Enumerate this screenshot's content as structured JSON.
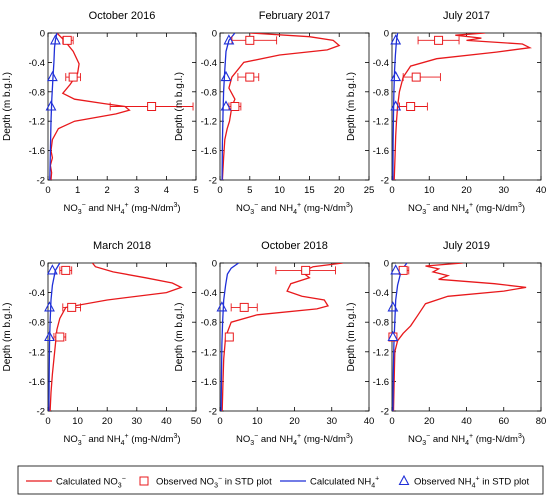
{
  "y_axis": {
    "label": "Depth (m b.g.l.)",
    "ticks": [
      0,
      -0.4,
      -0.8,
      -1.2,
      -1.6,
      -2
    ],
    "tick_labels": [
      "0",
      "-0.4",
      "-0.8",
      "-1.2",
      "-1.6",
      "-2"
    ],
    "range": [
      -2,
      0
    ]
  },
  "x_axis_label_parts": [
    "NO",
    "3",
    "−",
    " and NH",
    "4",
    "+",
    " (mg-N/dm",
    "3",
    ")"
  ],
  "colors": {
    "calculated_no3": "#e8191c",
    "observed_no3": "#e8191c",
    "calculated_nh4": "#1f2fd8",
    "observed_nh4": "#1f2fd8"
  },
  "legend": {
    "calc_no3": "Calculated NO3-",
    "obs_no3": "Observed NO3- in STD plot",
    "calc_nh4": "Calculated NH4+",
    "obs_nh4": "Observed NH4+ in STD plot"
  },
  "chart_data": [
    {
      "type": "line",
      "title": "October 2016",
      "xlim": [
        0,
        5
      ],
      "xticks": [
        0,
        1,
        2,
        3,
        4,
        5
      ],
      "series": [
        {
          "name": "Calculated NO3-",
          "x": [
            0.3,
            0.55,
            0.85,
            1.05,
            1.0,
            0.75,
            0.5,
            0.9,
            1.9,
            2.6,
            2.75,
            2.3,
            0.9,
            0.35,
            0.15,
            0.1,
            0.15,
            0.08,
            0.12,
            0.1
          ],
          "y": [
            0,
            -0.1,
            -0.25,
            -0.42,
            -0.55,
            -0.7,
            -0.82,
            -0.9,
            -0.96,
            -1.0,
            -1.05,
            -1.1,
            -1.2,
            -1.3,
            -1.45,
            -1.6,
            -1.7,
            -1.8,
            -1.9,
            -2
          ]
        },
        {
          "name": "Calculated NH4+",
          "x": [
            0.3,
            0.25,
            0.22,
            0.2,
            0.17,
            0.13,
            0.1,
            0.08,
            0.06
          ],
          "y": [
            0,
            -0.1,
            -0.2,
            -0.4,
            -0.6,
            -0.9,
            -1.2,
            -1.6,
            -2
          ]
        }
      ],
      "observed_no3": [
        {
          "x": 0.65,
          "y": -0.1,
          "xmin": 0.5,
          "xmax": 0.85
        },
        {
          "x": 0.85,
          "y": -0.6,
          "xmin": 0.6,
          "xmax": 1.1
        },
        {
          "x": 3.5,
          "y": -1.0,
          "xmin": 2.1,
          "xmax": 4.9
        }
      ],
      "observed_nh4": [
        {
          "x": 0.25,
          "y": -0.1
        },
        {
          "x": 0.15,
          "y": -0.6
        },
        {
          "x": 0.1,
          "y": -1.0
        }
      ]
    },
    {
      "type": "line",
      "title": "February 2017",
      "xlim": [
        0,
        25
      ],
      "xticks": [
        0,
        5,
        10,
        15,
        20,
        25
      ],
      "series": [
        {
          "name": "Calculated NO3-",
          "x": [
            5,
            15,
            19,
            20,
            18,
            10,
            4,
            2,
            1.5,
            2.5,
            2.0,
            1.6,
            1.2,
            0.8,
            0.6,
            0.4
          ],
          "y": [
            0,
            -0.05,
            -0.1,
            -0.17,
            -0.23,
            -0.3,
            -0.4,
            -0.6,
            -0.75,
            -0.9,
            -1.0,
            -1.2,
            -1.3,
            -1.45,
            -1.7,
            -2
          ]
        },
        {
          "name": "Calculated NH4+",
          "x": [
            2.5,
            1.5,
            1.0,
            0.8,
            0.6,
            0.5,
            0.4,
            0.35
          ],
          "y": [
            0,
            -0.1,
            -0.25,
            -0.5,
            -0.8,
            -1.1,
            -1.5,
            -2
          ]
        }
      ],
      "observed_no3": [
        {
          "x": 5,
          "y": -0.1,
          "xmin": 2,
          "xmax": 9.5
        },
        {
          "x": 5,
          "y": -0.6,
          "xmin": 3,
          "xmax": 6.5
        },
        {
          "x": 2.5,
          "y": -1.0,
          "xmin": 1.5,
          "xmax": 3.5
        }
      ],
      "observed_nh4": [
        {
          "x": 1.5,
          "y": -0.1
        },
        {
          "x": 1.0,
          "y": -0.6
        },
        {
          "x": 1.0,
          "y": -1.0
        }
      ]
    },
    {
      "type": "line",
      "title": "July 2017",
      "xlim": [
        0,
        40
      ],
      "xticks": [
        0,
        10,
        20,
        30,
        40
      ],
      "series": [
        {
          "name": "Calculated NO3-",
          "x": [
            25,
            17,
            24,
            20,
            35,
            37,
            28,
            12,
            5,
            3,
            2,
            1.5,
            1.2,
            1,
            0.8,
            0.6
          ],
          "y": [
            0,
            -0.03,
            -0.07,
            -0.1,
            -0.15,
            -0.2,
            -0.26,
            -0.35,
            -0.45,
            -0.6,
            -0.8,
            -1.0,
            -1.2,
            -1.4,
            -1.7,
            -2
          ]
        },
        {
          "name": "Calculated NH4+",
          "x": [
            1.5,
            1.2,
            0.9,
            0.7,
            0.5,
            0.4,
            0.3,
            0.25
          ],
          "y": [
            0,
            -0.1,
            -0.3,
            -0.5,
            -0.8,
            -1.1,
            -1.5,
            -2
          ]
        }
      ],
      "observed_no3": [
        {
          "x": 12.5,
          "y": -0.1,
          "xmin": 7,
          "xmax": 18
        },
        {
          "x": 6.5,
          "y": -0.6,
          "xmin": 3,
          "xmax": 13
        },
        {
          "x": 5,
          "y": -1.0,
          "xmin": 2,
          "xmax": 9.5
        }
      ],
      "observed_nh4": [
        {
          "x": 1.0,
          "y": -0.1
        },
        {
          "x": 1.0,
          "y": -0.6
        },
        {
          "x": 1.0,
          "y": -1.0
        }
      ]
    },
    {
      "type": "line",
      "title": "March 2018",
      "xlim": [
        0,
        50
      ],
      "xticks": [
        0,
        10,
        20,
        30,
        40,
        50
      ],
      "series": [
        {
          "name": "Calculated NO3-",
          "x": [
            15,
            16,
            22,
            33,
            42,
            45,
            40,
            20,
            6,
            4,
            3,
            2.5,
            2,
            1.5,
            1,
            0.7
          ],
          "y": [
            0,
            -0.05,
            -0.12,
            -0.2,
            -0.27,
            -0.33,
            -0.4,
            -0.5,
            -0.6,
            -0.75,
            -0.9,
            -1.1,
            -1.3,
            -1.5,
            -1.75,
            -2
          ]
        },
        {
          "name": "Calculated NH4+",
          "x": [
            4,
            2.5,
            1.5,
            1.0,
            0.7,
            0.5,
            0.4,
            0.3
          ],
          "y": [
            0,
            -0.1,
            -0.3,
            -0.5,
            -0.8,
            -1.1,
            -1.5,
            -2
          ]
        }
      ],
      "observed_no3": [
        {
          "x": 6,
          "y": -0.1,
          "xmin": 4,
          "xmax": 8
        },
        {
          "x": 8,
          "y": -0.6,
          "xmin": 5,
          "xmax": 11
        },
        {
          "x": 4,
          "y": -1.0,
          "xmin": 2,
          "xmax": 6
        }
      ],
      "observed_nh4": [
        {
          "x": 1.5,
          "y": -0.1
        },
        {
          "x": 0.5,
          "y": -0.6
        },
        {
          "x": 0.5,
          "y": -1.0
        }
      ]
    },
    {
      "type": "line",
      "title": "October 2018",
      "xlim": [
        0,
        40
      ],
      "xticks": [
        0,
        10,
        20,
        30,
        40
      ],
      "series": [
        {
          "name": "Calculated NO3-",
          "x": [
            33,
            25,
            22,
            24,
            19,
            18,
            22,
            28,
            29,
            26,
            10,
            3,
            1.5,
            1,
            0.8,
            0.6
          ],
          "y": [
            0,
            -0.05,
            -0.12,
            -0.2,
            -0.28,
            -0.38,
            -0.45,
            -0.5,
            -0.58,
            -0.62,
            -0.7,
            -0.8,
            -1.0,
            -1.3,
            -1.6,
            -2
          ]
        },
        {
          "name": "Calculated NH4+",
          "x": [
            5,
            3,
            2,
            1.5,
            1.0,
            0.7,
            0.5,
            0.4,
            0.3
          ],
          "y": [
            0,
            -0.07,
            -0.15,
            -0.3,
            -0.5,
            -0.8,
            -1.1,
            -1.5,
            -2
          ]
        }
      ],
      "observed_no3": [
        {
          "x": 23,
          "y": -0.1,
          "xmin": 15,
          "xmax": 31
        },
        {
          "x": 6.5,
          "y": -0.6,
          "xmin": 3,
          "xmax": 10
        },
        {
          "x": 2.5,
          "y": -1.0,
          "xmin": 2,
          "xmax": 3
        }
      ],
      "observed_nh4": [
        {
          "x": 0.5,
          "y": -0.6
        }
      ]
    },
    {
      "type": "line",
      "title": "July 2019",
      "xlim": [
        0,
        80
      ],
      "xticks": [
        0,
        20,
        40,
        60,
        80
      ],
      "series": [
        {
          "name": "Calculated NO3-",
          "x": [
            38,
            18,
            25,
            22,
            30,
            25,
            55,
            72,
            60,
            30,
            18,
            14,
            10,
            6,
            3,
            1.5,
            0.8
          ],
          "y": [
            0,
            -0.04,
            -0.08,
            -0.12,
            -0.17,
            -0.22,
            -0.28,
            -0.33,
            -0.38,
            -0.45,
            -0.55,
            -0.7,
            -0.85,
            -0.95,
            -1.05,
            -1.2,
            -2
          ]
        },
        {
          "name": "Calculated NH4+",
          "x": [
            8,
            5,
            3,
            2,
            1.5,
            1,
            0.7,
            0.5
          ],
          "y": [
            0,
            -0.1,
            -0.3,
            -0.5,
            -0.8,
            -1.1,
            -1.5,
            -2
          ]
        }
      ],
      "observed_no3": [
        {
          "x": 6,
          "y": -0.1,
          "xmin": 4,
          "xmax": 9
        },
        {
          "x": 0.5,
          "y": -1.0,
          "xmin": 0,
          "xmax": 1
        }
      ],
      "observed_nh4": [
        {
          "x": 2,
          "y": -0.1
        },
        {
          "x": 0.5,
          "y": -0.6
        },
        {
          "x": 0.5,
          "y": -1.0
        }
      ]
    }
  ]
}
